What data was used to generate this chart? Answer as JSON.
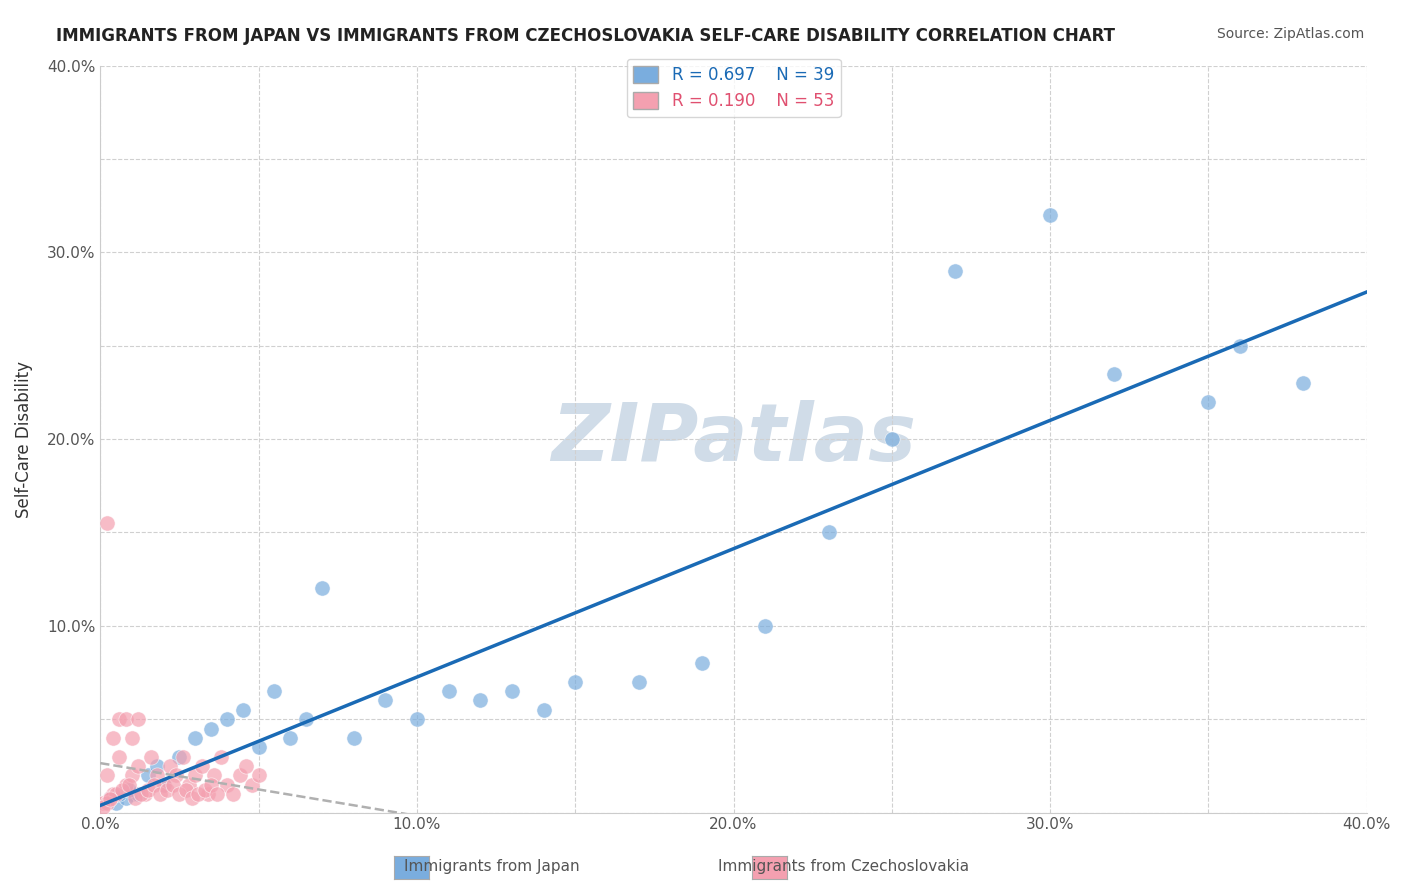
{
  "title": "IMMIGRANTS FROM JAPAN VS IMMIGRANTS FROM CZECHOSLOVAKIA SELF-CARE DISABILITY CORRELATION CHART",
  "source": "Source: ZipAtlas.com",
  "xlabel": "",
  "ylabel": "Self-Care Disability",
  "xlim": [
    0.0,
    0.4
  ],
  "ylim": [
    0.0,
    0.4
  ],
  "xticks": [
    0.0,
    0.05,
    0.1,
    0.15,
    0.2,
    0.25,
    0.3,
    0.35,
    0.4
  ],
  "yticks": [
    0.0,
    0.05,
    0.1,
    0.15,
    0.2,
    0.25,
    0.3,
    0.35,
    0.4
  ],
  "xticklabels": [
    "0.0%",
    "",
    "10.0%",
    "",
    "20.0%",
    "",
    "30.0%",
    "",
    "40.0%"
  ],
  "yticklabels": [
    "",
    "",
    "10.0%",
    "",
    "20.0%",
    "",
    "30.0%",
    "",
    "40.0%"
  ],
  "japan_R": 0.697,
  "japan_N": 39,
  "czech_R": 0.19,
  "czech_N": 53,
  "japan_color": "#7aadde",
  "czech_color": "#f4a0b0",
  "japan_line_color": "#1a6ab5",
  "czech_line_color": "#b0b0b0",
  "czech_text_color": "#e05070",
  "watermark": "ZIPatlas",
  "watermark_color": "#d0dce8",
  "legend_japan_label": "R = 0.697    N = 39",
  "legend_czech_label": "R = 0.190    N = 53",
  "japan_scatter_x": [
    0.01,
    0.015,
    0.02,
    0.005,
    0.008,
    0.012,
    0.018,
    0.025,
    0.03,
    0.035,
    0.04,
    0.045,
    0.05,
    0.055,
    0.06,
    0.065,
    0.07,
    0.08,
    0.09,
    0.1,
    0.11,
    0.12,
    0.13,
    0.14,
    0.15,
    0.17,
    0.19,
    0.21,
    0.23,
    0.25,
    0.27,
    0.3,
    0.32,
    0.35,
    0.36,
    0.38,
    0.003,
    0.006,
    0.009
  ],
  "japan_scatter_y": [
    0.01,
    0.02,
    0.015,
    0.005,
    0.008,
    0.01,
    0.025,
    0.03,
    0.04,
    0.045,
    0.05,
    0.055,
    0.035,
    0.065,
    0.04,
    0.05,
    0.12,
    0.04,
    0.06,
    0.05,
    0.065,
    0.06,
    0.065,
    0.055,
    0.07,
    0.07,
    0.08,
    0.1,
    0.15,
    0.2,
    0.29,
    0.32,
    0.235,
    0.22,
    0.25,
    0.23,
    0.008,
    0.01,
    0.012
  ],
  "czech_scatter_x": [
    0.002,
    0.004,
    0.006,
    0.008,
    0.01,
    0.012,
    0.014,
    0.016,
    0.018,
    0.02,
    0.022,
    0.024,
    0.026,
    0.028,
    0.03,
    0.032,
    0.034,
    0.036,
    0.038,
    0.04,
    0.042,
    0.044,
    0.046,
    0.048,
    0.05,
    0.001,
    0.003,
    0.005,
    0.007,
    0.009,
    0.011,
    0.013,
    0.015,
    0.017,
    0.019,
    0.021,
    0.023,
    0.025,
    0.027,
    0.029,
    0.031,
    0.033,
    0.035,
    0.037,
    0.002,
    0.004,
    0.006,
    0.008,
    0.01,
    0.012,
    0.002,
    0.001,
    0.003
  ],
  "czech_scatter_y": [
    0.02,
    0.01,
    0.03,
    0.015,
    0.02,
    0.025,
    0.01,
    0.03,
    0.02,
    0.015,
    0.025,
    0.02,
    0.03,
    0.015,
    0.02,
    0.025,
    0.01,
    0.02,
    0.03,
    0.015,
    0.01,
    0.02,
    0.025,
    0.015,
    0.02,
    0.005,
    0.008,
    0.01,
    0.012,
    0.015,
    0.008,
    0.01,
    0.012,
    0.015,
    0.01,
    0.012,
    0.015,
    0.01,
    0.012,
    0.008,
    0.01,
    0.012,
    0.015,
    0.01,
    0.155,
    0.04,
    0.05,
    0.05,
    0.04,
    0.05,
    0.005,
    0.003,
    0.007
  ],
  "background_color": "#ffffff",
  "grid_color": "#d0d0d0"
}
